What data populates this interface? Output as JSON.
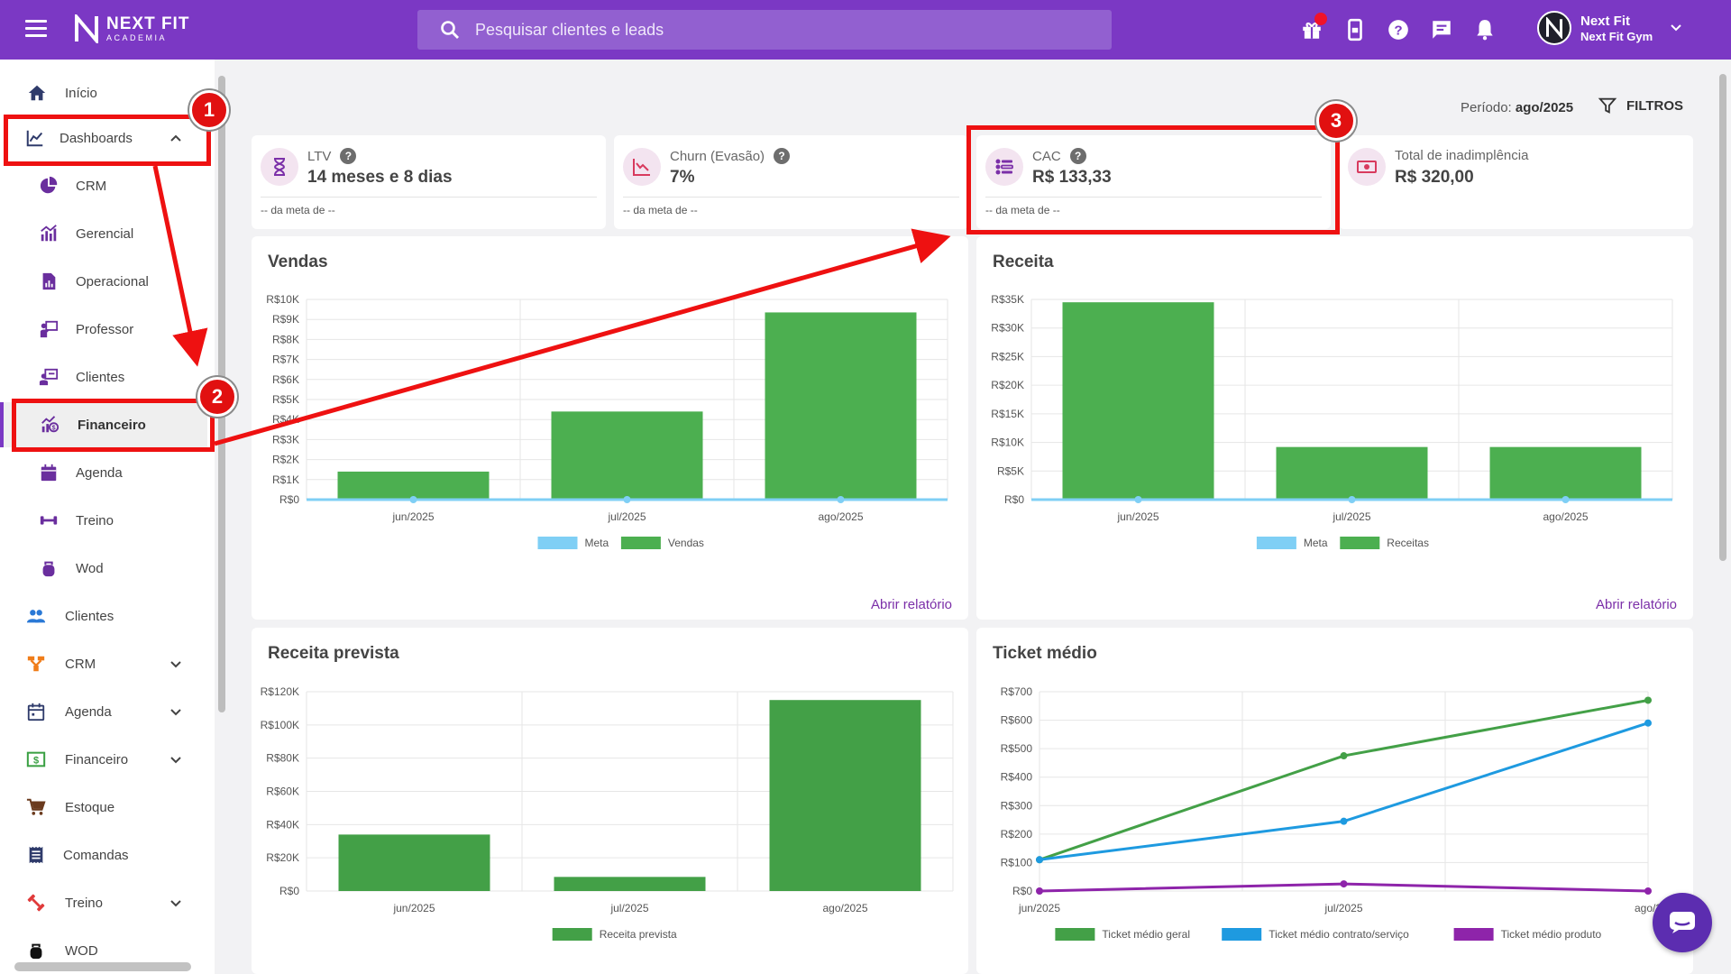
{
  "header": {
    "logo_title": "NEXT FIT",
    "logo_sub": "ACADEMIA",
    "search_placeholder": "Pesquisar clientes e leads",
    "user_name": "Next Fit",
    "user_gym": "Next Fit Gym",
    "icons": [
      "gift-icon",
      "mobile-icon",
      "help-icon",
      "chat-icon",
      "bell-icon"
    ]
  },
  "sidebar": {
    "items": [
      {
        "label": "Início",
        "icon": "home-icon"
      },
      {
        "label": "Dashboards",
        "icon": "chart-line-icon"
      },
      {
        "label": "CRM",
        "icon": "pie-chart-icon"
      },
      {
        "label": "Gerencial",
        "icon": "bar-chart-icon"
      },
      {
        "label": "Operacional",
        "icon": "document-chart-icon"
      },
      {
        "label": "Professor",
        "icon": "teacher-icon"
      },
      {
        "label": "Clientes",
        "icon": "clients-board-icon"
      },
      {
        "label": "Financeiro",
        "icon": "finance-chart-icon"
      },
      {
        "label": "Agenda",
        "icon": "calendar-icon"
      },
      {
        "label": "Treino",
        "icon": "dumbbell-icon"
      },
      {
        "label": "Wod",
        "icon": "kettlebell-icon"
      },
      {
        "label": "Clientes",
        "icon": "people-icon"
      },
      {
        "label": "CRM",
        "icon": "funnel-icon"
      },
      {
        "label": "Agenda",
        "icon": "calendar-icon"
      },
      {
        "label": "Financeiro",
        "icon": "money-icon"
      },
      {
        "label": "Estoque",
        "icon": "cart-icon"
      },
      {
        "label": "Comandas",
        "icon": "receipt-icon"
      },
      {
        "label": "Treino",
        "icon": "dumbbell-icon"
      },
      {
        "label": "WOD",
        "icon": "kettlebell-icon"
      }
    ]
  },
  "filters": {
    "period_label": "Período:",
    "period_value": "ago/2025",
    "filters_label": "FILTROS"
  },
  "kpis": [
    {
      "title": "LTV",
      "value": "14 meses e 8 dias",
      "meta": "-- da meta de --",
      "help": "?"
    },
    {
      "title": "Churn (Evasão)",
      "value": "7%",
      "meta": "-- da meta de --",
      "help": "?"
    },
    {
      "title": "CAC",
      "value": "R$ 133,33",
      "meta": "-- da meta de --",
      "help": "?"
    },
    {
      "title": "Total de inadimplência",
      "value": "R$ 320,00"
    }
  ],
  "panels": {
    "vendas": {
      "title": "Vendas",
      "link": "Abrir relatório"
    },
    "receita": {
      "title": "Receita",
      "link": "Abrir relatório"
    },
    "receita_prevista": {
      "title": "Receita prevista"
    },
    "ticket": {
      "title": "Ticket médio"
    }
  },
  "annotations": [
    "1",
    "2",
    "3"
  ],
  "chart_data": [
    {
      "type": "bar",
      "title": "Vendas",
      "categories": [
        "jun/2025",
        "jul/2025",
        "ago/2025"
      ],
      "yticks": [
        "R$0",
        "R$1K",
        "R$2K",
        "R$3K",
        "R$4K",
        "R$5K",
        "R$6K",
        "R$7K",
        "R$8K",
        "R$9K",
        "R$10K"
      ],
      "ylim": [
        0,
        10000
      ],
      "series": [
        {
          "name": "Meta",
          "type": "line",
          "color": "#7fcff5",
          "values": [
            0,
            0,
            0
          ]
        },
        {
          "name": "Vendas",
          "type": "bar",
          "color": "#4caf50",
          "values": [
            1400,
            4400,
            9350
          ]
        }
      ],
      "legend": "bottom"
    },
    {
      "type": "bar",
      "title": "Receita",
      "categories": [
        "jun/2025",
        "jul/2025",
        "ago/2025"
      ],
      "yticks": [
        "R$0",
        "R$5K",
        "R$10K",
        "R$15K",
        "R$20K",
        "R$25K",
        "R$30K",
        "R$35K"
      ],
      "ylim": [
        0,
        35000
      ],
      "series": [
        {
          "name": "Meta",
          "type": "line",
          "color": "#7fcff5",
          "values": [
            0,
            0,
            0
          ]
        },
        {
          "name": "Receitas",
          "type": "bar",
          "color": "#4caf50",
          "values": [
            34500,
            9200,
            9200
          ]
        }
      ],
      "legend": "bottom"
    },
    {
      "type": "bar",
      "title": "Receita prevista",
      "categories": [
        "jun/2025",
        "jul/2025",
        "ago/2025"
      ],
      "yticks": [
        "R$0",
        "R$20K",
        "R$40K",
        "R$60K",
        "R$80K",
        "R$100K",
        "R$120K"
      ],
      "ylim": [
        0,
        120000
      ],
      "series": [
        {
          "name": "Receita prevista",
          "type": "bar",
          "color": "#43a047",
          "values": [
            34000,
            8500,
            115000
          ]
        }
      ],
      "legend": "bottom"
    },
    {
      "type": "line",
      "title": "Ticket médio",
      "categories": [
        "jun/2025",
        "jul/2025",
        "ago/2"
      ],
      "yticks": [
        "R$0",
        "R$100",
        "R$200",
        "R$300",
        "R$400",
        "R$500",
        "R$600",
        "R$700"
      ],
      "ylim": [
        0,
        700
      ],
      "series": [
        {
          "name": "Ticket médio geral",
          "color": "#43a047",
          "values": [
            110,
            475,
            670
          ]
        },
        {
          "name": "Ticket médio contrato/serviço",
          "color": "#1e9ae0",
          "values": [
            110,
            245,
            590
          ]
        },
        {
          "name": "Ticket médio produto",
          "color": "#8e24aa",
          "values": [
            0,
            25,
            0
          ]
        }
      ],
      "legend": "bottom"
    }
  ]
}
